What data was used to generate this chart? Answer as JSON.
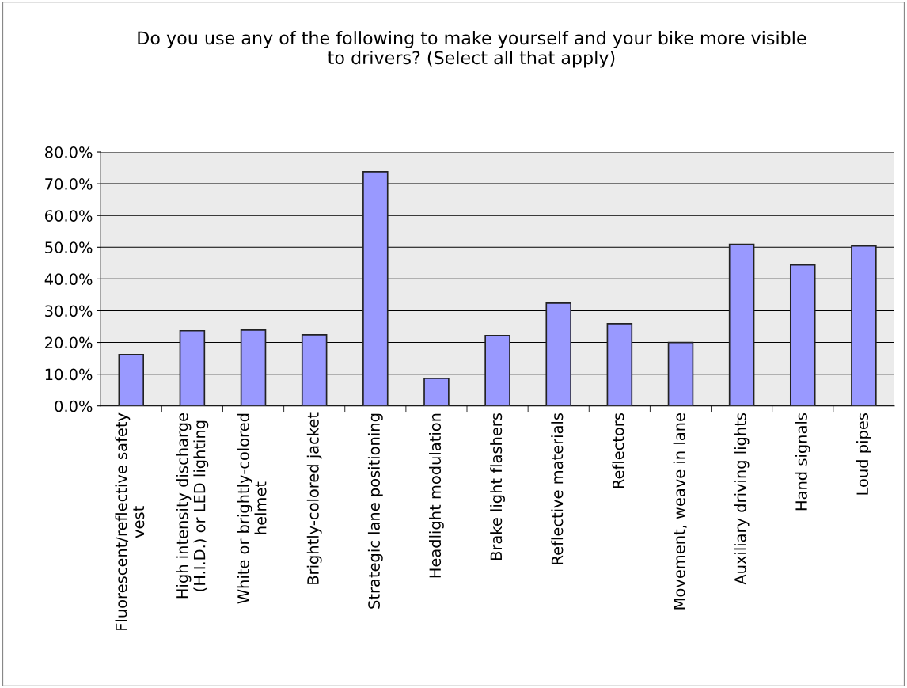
{
  "chart_data": {
    "type": "bar",
    "title": "Do you use any of the following to make yourself and your bike more visible\nto drivers? (Select all that apply)",
    "categories": [
      "Fluorescent/reflective safety\nvest",
      "High intensity discharge\n(H.I.D.) or LED lighting",
      "White or brightly-colored\nhelmet",
      "Brightly-colored jacket",
      "Strategic lane positioning",
      "Headlight modulation",
      "Brake light flashers",
      "Reflective materials",
      "Reflectors",
      "Movement, weave in lane",
      "Auxiliary driving lights",
      "Hand signals",
      "Loud pipes"
    ],
    "values": [
      16.2,
      23.7,
      23.9,
      22.4,
      73.8,
      8.7,
      22.2,
      32.4,
      25.9,
      20.0,
      50.9,
      44.4,
      50.4
    ],
    "color": "#9999ff",
    "ylim": [
      0,
      80
    ],
    "yticks": [
      {
        "value": 0,
        "label": "0.0%"
      },
      {
        "value": 10,
        "label": "10.0%"
      },
      {
        "value": 20,
        "label": "20.0%"
      },
      {
        "value": 30,
        "label": "30.0%"
      },
      {
        "value": 40,
        "label": "40.0%"
      },
      {
        "value": 50,
        "label": "50.0%"
      },
      {
        "value": 60,
        "label": "60.0%"
      },
      {
        "value": 70,
        "label": "70.0%"
      },
      {
        "value": 80,
        "label": "80.0%"
      }
    ],
    "grid": "y",
    "legend": false
  }
}
